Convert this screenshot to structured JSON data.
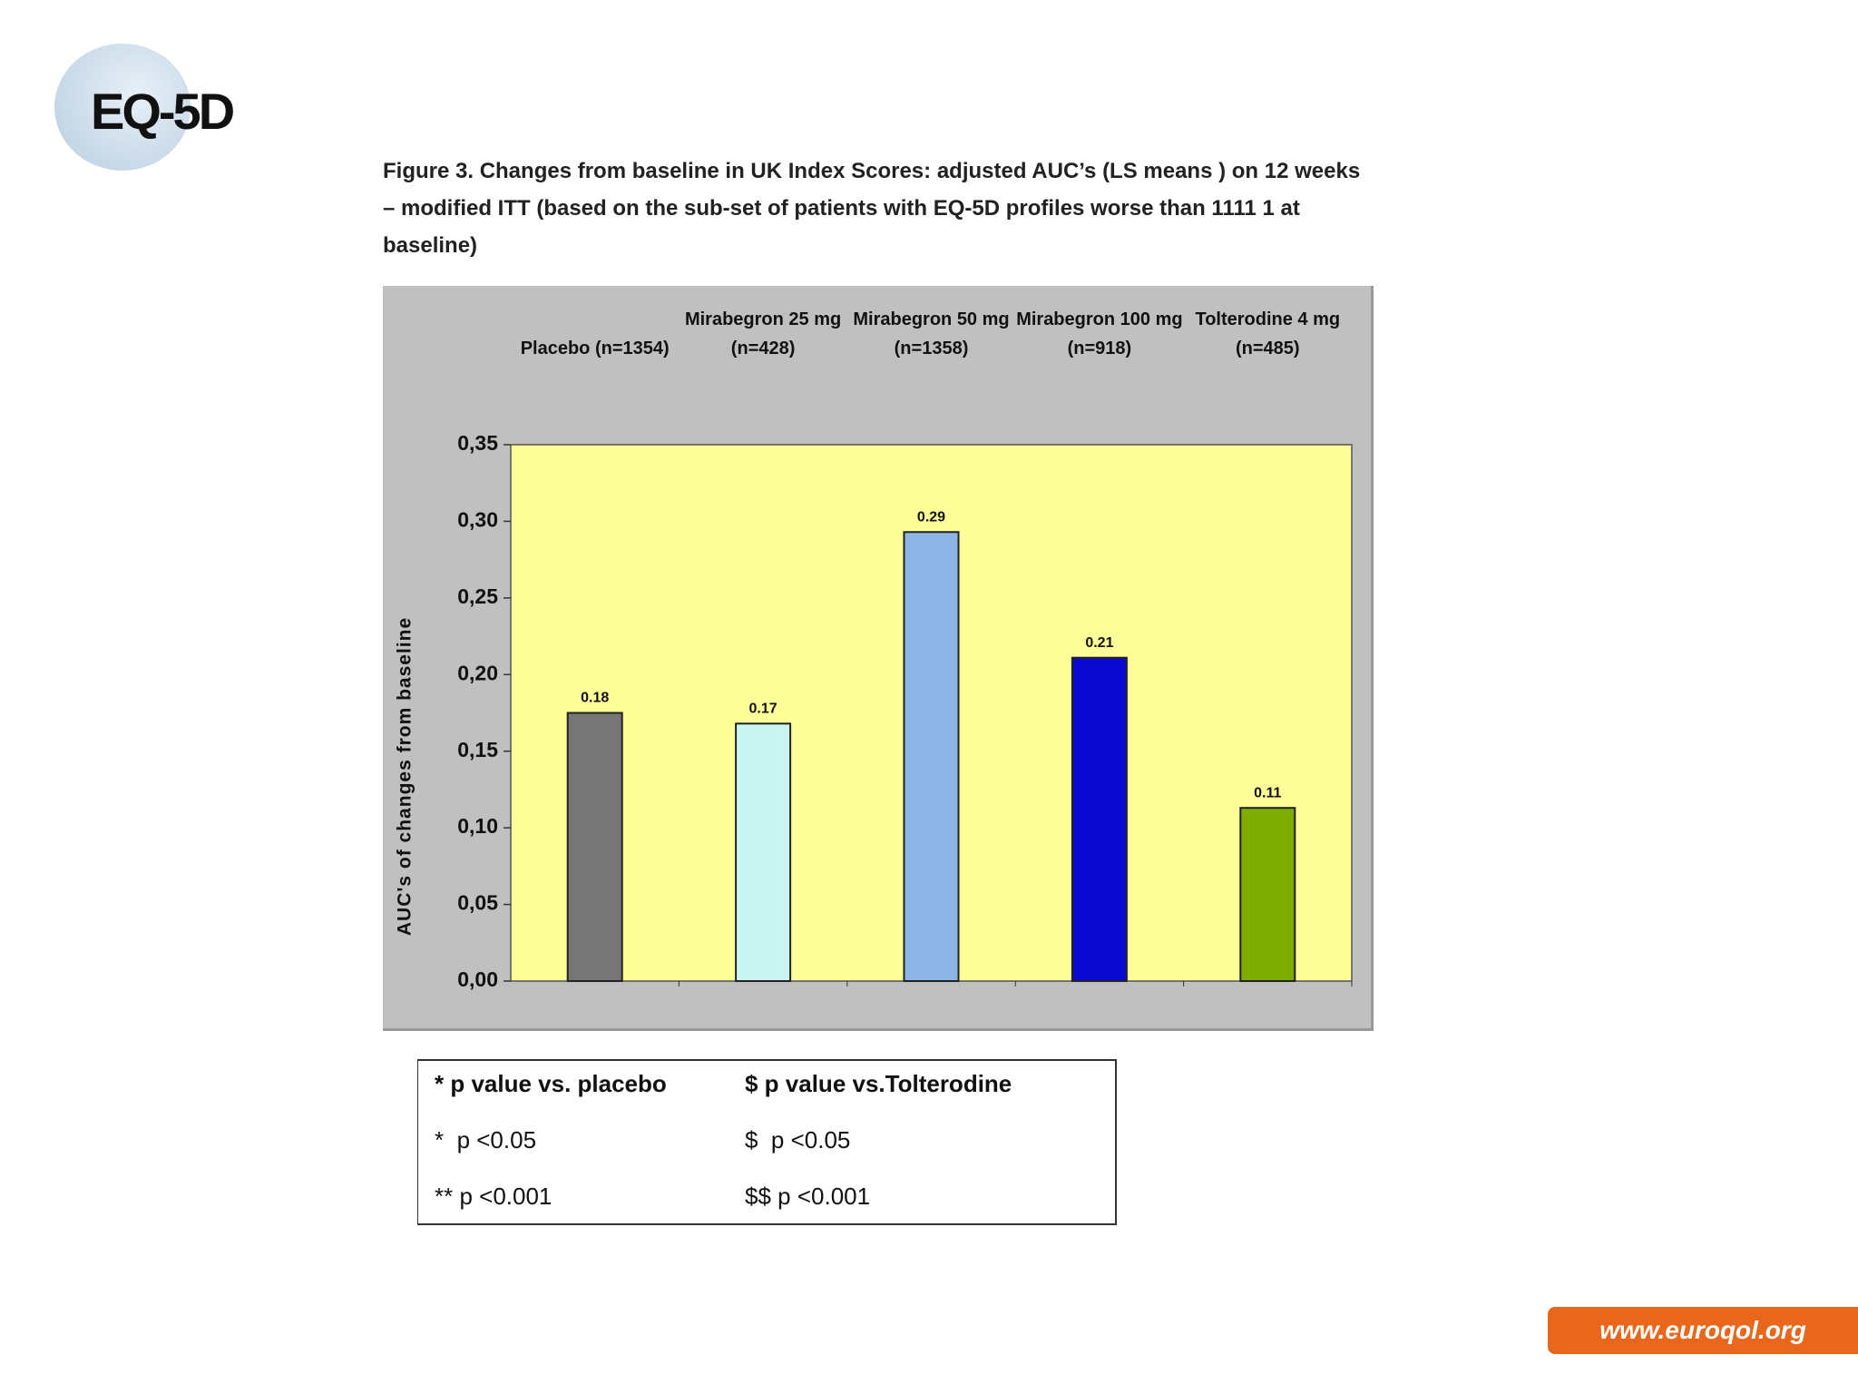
{
  "logo": "EQ-5D",
  "caption": "Figure 3. Changes from baseline in UK Index Scores: adjusted AUC’s (LS means ) on 12 weeks – modified ITT (based on the sub-set of patients with EQ-5D profiles worse than 1111 1 at baseline)",
  "chart_data": {
    "type": "bar",
    "categories": [
      "Placebo (n=1354)",
      "Mirabegron 25 mg\n(n=428)",
      "Mirabegron 50 mg\n(n=1358)",
      "Mirabegron 100 mg\n(n=918)",
      "Tolterodine  4 mg\n(n=485)"
    ],
    "values": [
      0.175,
      0.168,
      0.293,
      0.211,
      0.113
    ],
    "value_labels": [
      "0.18",
      "0.17",
      "0.29",
      "0.21",
      "0.11"
    ],
    "colors": [
      "#767676",
      "#c9f5f3",
      "#8db6e6",
      "#0a0ad0",
      "#7fac00"
    ],
    "y_label": "AUC's of changes from baseline",
    "ylim": [
      0,
      0.35
    ],
    "yticks": [
      {
        "value": 0,
        "label": "0,00"
      },
      {
        "value": 0.05,
        "label": "0,05"
      },
      {
        "value": 0.1,
        "label": "0,10"
      },
      {
        "value": 0.15,
        "label": "0,15"
      },
      {
        "value": 0.2,
        "label": "0,20"
      },
      {
        "value": 0.25,
        "label": "0,25"
      },
      {
        "value": 0.3,
        "label": "0,30"
      },
      {
        "value": 0.35,
        "label": "0,35"
      }
    ]
  },
  "legend_table": {
    "header": [
      "* p value vs. placebo",
      "$ p value vs.Tolterodine"
    ],
    "rows": [
      [
        "*  p <0.05",
        "$  p <0.05"
      ],
      [
        "** p <0.001",
        "$$ p <0.001"
      ]
    ]
  },
  "footer": "www.euroqol.org"
}
